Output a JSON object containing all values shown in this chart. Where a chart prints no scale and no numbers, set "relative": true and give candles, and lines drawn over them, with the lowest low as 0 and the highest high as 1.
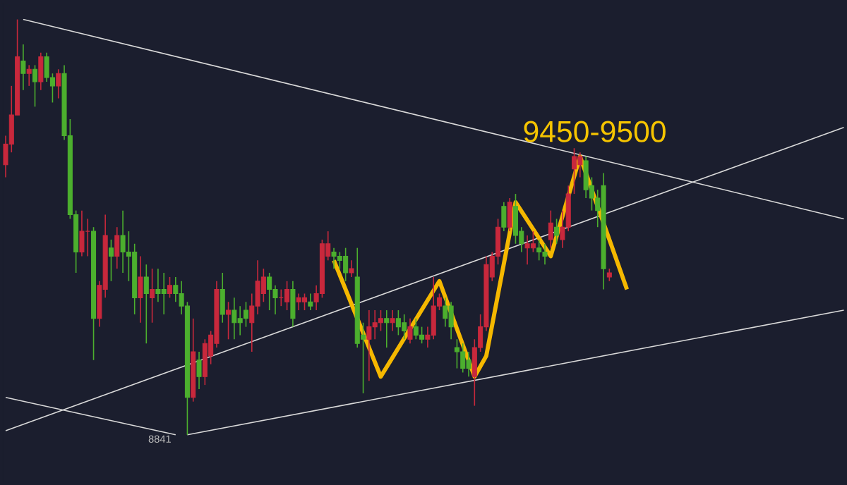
{
  "chart_data": {
    "type": "candlestick",
    "relative": true,
    "categories": [
      null,
      null,
      null,
      null,
      null,
      null,
      null,
      null,
      null,
      null,
      null,
      null,
      null,
      null,
      null,
      null,
      null,
      null,
      null,
      null,
      null,
      null,
      null,
      null,
      null,
      null,
      null,
      null,
      null,
      null,
      null,
      null,
      null,
      null,
      null,
      null,
      null,
      null,
      null,
      null,
      null,
      null,
      null,
      null,
      null,
      null,
      null,
      null,
      null,
      null,
      null,
      null,
      null,
      null,
      null,
      null,
      null,
      null,
      null,
      null,
      null,
      null,
      null,
      null,
      null,
      null,
      null,
      null,
      null,
      null,
      null,
      null,
      null,
      null,
      null,
      null,
      null,
      null,
      null,
      null,
      null,
      null,
      null,
      null,
      null,
      null,
      null,
      null,
      null,
      null,
      null,
      null,
      null,
      null,
      null,
      null,
      null,
      null,
      null,
      null,
      null,
      null,
      null,
      null,
      null,
      null,
      null,
      null,
      null,
      null,
      null,
      null,
      null,
      null,
      null,
      null,
      null,
      null,
      null,
      null,
      null,
      null,
      null,
      null,
      null,
      null,
      null,
      null,
      null,
      null,
      null,
      null,
      null,
      null,
      null,
      null,
      null,
      null,
      null,
      null,
      null,
      null,
      null,
      null
    ],
    "annotations": [
      "9450-9500",
      "8841"
    ],
    "ohlc": [
      [
        0.65,
        0.72,
        0.62,
        0.7
      ],
      [
        0.7,
        0.84,
        0.68,
        0.77
      ],
      [
        0.77,
        1.0,
        0.77,
        0.91
      ],
      [
        0.9,
        0.94,
        0.83,
        0.87
      ],
      [
        0.87,
        0.89,
        0.84,
        0.88
      ],
      [
        0.88,
        0.89,
        0.79,
        0.85
      ],
      [
        0.85,
        0.92,
        0.83,
        0.91
      ],
      [
        0.91,
        0.92,
        0.85,
        0.86
      ],
      [
        0.86,
        0.87,
        0.8,
        0.84
      ],
      [
        0.84,
        0.88,
        0.81,
        0.87
      ],
      [
        0.87,
        0.89,
        0.71,
        0.72
      ],
      [
        0.72,
        0.76,
        0.52,
        0.53
      ],
      [
        0.53,
        0.54,
        0.39,
        0.44
      ],
      [
        0.44,
        0.54,
        0.43,
        0.49
      ],
      [
        0.49,
        0.52,
        0.43,
        0.49
      ],
      [
        0.49,
        0.5,
        0.18,
        0.28
      ],
      [
        0.28,
        0.37,
        0.26,
        0.36
      ],
      [
        0.35,
        0.53,
        0.33,
        0.48
      ],
      [
        0.45,
        0.47,
        0.37,
        0.43
      ],
      [
        0.43,
        0.5,
        0.4,
        0.48
      ],
      [
        0.48,
        0.54,
        0.39,
        0.44
      ],
      [
        0.44,
        0.49,
        0.37,
        0.43
      ],
      [
        0.44,
        0.46,
        0.29,
        0.33
      ],
      [
        0.33,
        0.43,
        0.27,
        0.38
      ],
      [
        0.38,
        0.41,
        0.22,
        0.34
      ],
      [
        0.33,
        0.4,
        0.27,
        0.35
      ],
      [
        0.35,
        0.4,
        0.32,
        0.34
      ],
      [
        0.35,
        0.39,
        0.29,
        0.34
      ],
      [
        0.34,
        0.38,
        0.33,
        0.36
      ],
      [
        0.36,
        0.38,
        0.32,
        0.34
      ],
      [
        0.34,
        0.37,
        0.29,
        0.31
      ],
      [
        0.31,
        0.32,
        0.0,
        0.09
      ],
      [
        0.09,
        0.28,
        0.08,
        0.2
      ],
      [
        0.18,
        0.2,
        0.11,
        0.14
      ],
      [
        0.14,
        0.23,
        0.12,
        0.22
      ],
      [
        0.19,
        0.25,
        0.17,
        0.24
      ],
      [
        0.22,
        0.37,
        0.21,
        0.35
      ],
      [
        0.35,
        0.39,
        0.27,
        0.29
      ],
      [
        0.29,
        0.32,
        0.23,
        0.3
      ],
      [
        0.3,
        0.33,
        0.23,
        0.27
      ],
      [
        0.28,
        0.31,
        0.24,
        0.27
      ],
      [
        0.3,
        0.32,
        0.26,
        0.28
      ],
      [
        0.27,
        0.34,
        0.2,
        0.31
      ],
      [
        0.31,
        0.42,
        0.29,
        0.37
      ],
      [
        0.34,
        0.4,
        0.32,
        0.38
      ],
      [
        0.38,
        0.39,
        0.3,
        0.35
      ],
      [
        0.35,
        0.36,
        0.29,
        0.33
      ],
      [
        0.33,
        0.35,
        0.31,
        0.33
      ],
      [
        0.32,
        0.37,
        0.3,
        0.35
      ],
      [
        0.35,
        0.37,
        0.26,
        0.28
      ],
      [
        0.32,
        0.34,
        0.3,
        0.33
      ],
      [
        0.32,
        0.34,
        0.3,
        0.33
      ],
      [
        0.32,
        0.34,
        0.3,
        0.31
      ],
      [
        0.32,
        0.36,
        0.3,
        0.34
      ],
      [
        0.34,
        0.47,
        0.33,
        0.46
      ],
      [
        0.43,
        0.49,
        0.42,
        0.46
      ],
      [
        0.44,
        0.45,
        0.4,
        0.43
      ],
      [
        0.43,
        0.44,
        0.4,
        0.42
      ],
      [
        0.43,
        0.45,
        0.37,
        0.39
      ],
      [
        0.39,
        0.42,
        0.38,
        0.4
      ],
      [
        0.38,
        0.45,
        0.21,
        0.22
      ],
      [
        0.24,
        0.27,
        0.1,
        0.23
      ],
      [
        0.23,
        0.3,
        0.13,
        0.26
      ],
      [
        0.26,
        0.3,
        0.23,
        0.27
      ],
      [
        0.27,
        0.3,
        0.25,
        0.28
      ],
      [
        0.28,
        0.3,
        0.21,
        0.27
      ],
      [
        0.27,
        0.3,
        0.25,
        0.28
      ],
      [
        0.28,
        0.3,
        0.24,
        0.26
      ],
      [
        0.27,
        0.29,
        0.23,
        0.25
      ],
      [
        0.23,
        0.28,
        0.22,
        0.26
      ],
      [
        0.26,
        0.28,
        0.23,
        0.24
      ],
      [
        0.24,
        0.26,
        0.22,
        0.23
      ],
      [
        0.23,
        0.26,
        0.21,
        0.24
      ],
      [
        0.24,
        0.38,
        0.23,
        0.31
      ],
      [
        0.31,
        0.34,
        0.3,
        0.33
      ],
      [
        0.31,
        0.33,
        0.26,
        0.28
      ],
      [
        0.31,
        0.32,
        0.23,
        0.26
      ],
      [
        0.21,
        0.23,
        0.16,
        0.2
      ],
      [
        0.2,
        0.22,
        0.15,
        0.16
      ],
      [
        0.18,
        0.2,
        0.14,
        0.16
      ],
      [
        0.14,
        0.23,
        0.07,
        0.21
      ],
      [
        0.21,
        0.29,
        0.2,
        0.26
      ],
      [
        0.26,
        0.43,
        0.25,
        0.41
      ],
      [
        0.38,
        0.44,
        0.37,
        0.43
      ],
      [
        0.43,
        0.52,
        0.41,
        0.5
      ],
      [
        0.55,
        0.56,
        0.49,
        0.5
      ],
      [
        0.5,
        0.57,
        0.49,
        0.56
      ],
      [
        0.55,
        0.58,
        0.46,
        0.48
      ],
      [
        0.49,
        0.5,
        0.44,
        0.46
      ],
      [
        0.45,
        0.48,
        0.41,
        0.46
      ],
      [
        0.45,
        0.49,
        0.44,
        0.46
      ],
      [
        0.45,
        0.47,
        0.42,
        0.44
      ],
      [
        0.44,
        0.46,
        0.41,
        0.43
      ],
      [
        0.47,
        0.54,
        0.45,
        0.51
      ],
      [
        0.5,
        0.52,
        0.46,
        0.48
      ],
      [
        0.47,
        0.54,
        0.45,
        0.5
      ],
      [
        0.5,
        0.6,
        0.49,
        0.58
      ],
      [
        0.64,
        0.69,
        0.58,
        0.67
      ],
      [
        0.65,
        0.68,
        0.62,
        0.67
      ],
      [
        0.66,
        0.67,
        0.57,
        0.59
      ],
      [
        0.6,
        0.62,
        0.54,
        0.57
      ],
      [
        0.57,
        0.59,
        0.5,
        0.54
      ],
      [
        0.6,
        0.63,
        0.35,
        0.4
      ],
      [
        0.38,
        0.4,
        0.37,
        0.39
      ],
      null,
      null,
      null,
      null,
      null,
      null,
      null,
      null,
      null,
      null,
      null,
      null,
      null,
      null,
      null,
      null,
      null,
      null,
      null,
      null,
      null,
      null,
      null,
      null,
      null,
      null,
      null,
      null,
      null,
      null,
      null,
      null,
      null,
      null,
      null,
      null,
      null,
      null,
      null,
      null
    ],
    "series": [
      {
        "type": "line",
        "color": "#d9d9d9",
        "values": [
          null,
          null,
          null,
          1.0,
          null,
          null,
          null,
          null,
          null,
          null,
          null,
          null,
          null,
          null,
          null,
          null,
          null,
          null,
          null,
          null,
          null,
          null,
          null,
          null,
          null,
          null,
          null,
          null,
          null,
          null,
          null,
          null,
          null,
          null,
          null,
          null,
          null,
          null,
          null,
          null,
          null,
          null,
          null,
          null,
          null,
          null,
          null,
          null,
          null,
          null,
          null,
          null,
          null,
          null,
          null,
          null,
          null,
          null,
          null,
          null,
          null,
          null,
          null,
          null,
          null,
          null,
          null,
          null,
          null,
          null,
          null,
          null,
          null,
          null,
          null,
          null,
          null,
          null,
          null,
          null,
          null,
          null,
          null,
          null,
          null,
          null,
          null,
          null,
          null,
          null,
          null,
          null,
          null,
          null,
          null,
          null,
          null,
          null,
          null,
          null,
          null,
          null,
          null,
          null,
          null,
          null,
          null,
          null,
          null,
          null,
          null,
          null,
          null,
          null,
          null,
          null,
          null,
          null,
          null,
          null,
          null,
          null,
          null,
          null,
          null,
          null,
          null,
          null,
          null,
          null,
          null,
          null,
          null,
          null,
          null,
          null,
          null,
          null,
          null,
          null,
          null,
          null,
          null,
          0.52
        ]
      },
      {
        "type": "line",
        "color": "#d9d9d9",
        "values": [
          0.01,
          null,
          null,
          null,
          null,
          null,
          null,
          null,
          null,
          null,
          null,
          null,
          null,
          null,
          null,
          null,
          null,
          null,
          null,
          null,
          null,
          null,
          null,
          null,
          null,
          null,
          null,
          null,
          null,
          null,
          null,
          null,
          null,
          null,
          null,
          null,
          null,
          null,
          null,
          null,
          null,
          null,
          null,
          null,
          null,
          null,
          null,
          null,
          null,
          null,
          null,
          null,
          null,
          null,
          null,
          null,
          null,
          null,
          null,
          null,
          null,
          null,
          null,
          null,
          null,
          null,
          null,
          null,
          null,
          null,
          null,
          null,
          null,
          null,
          null,
          null,
          null,
          null,
          null,
          null,
          null,
          null,
          null,
          null,
          null,
          null,
          null,
          null,
          null,
          null,
          null,
          null,
          null,
          null,
          null,
          null,
          null,
          null,
          null,
          null,
          null,
          null,
          null,
          null,
          null,
          null,
          null,
          null,
          null,
          null,
          null,
          null,
          null,
          null,
          null,
          null,
          null,
          null,
          null,
          null,
          null,
          null,
          null,
          null,
          null,
          null,
          null,
          null,
          null,
          null,
          null,
          null,
          null,
          null,
          null,
          null,
          null,
          null,
          null,
          null,
          null,
          null,
          null,
          0.74
        ]
      },
      {
        "type": "line",
        "color": "#d9d9d9",
        "values": [
          null,
          null,
          null,
          null,
          null,
          null,
          null,
          null,
          null,
          null,
          null,
          null,
          null,
          null,
          null,
          null,
          null,
          null,
          null,
          null,
          null,
          null,
          null,
          null,
          null,
          null,
          null,
          null,
          null,
          null,
          null,
          0.0,
          null,
          null,
          null,
          null,
          null,
          null,
          null,
          null,
          null,
          null,
          null,
          null,
          null,
          null,
          null,
          null,
          null,
          null,
          null,
          null,
          null,
          null,
          null,
          null,
          null,
          null,
          null,
          null,
          null,
          null,
          null,
          null,
          null,
          null,
          null,
          null,
          null,
          null,
          null,
          null,
          null,
          null,
          null,
          null,
          null,
          null,
          null,
          null,
          null,
          null,
          null,
          null,
          null,
          null,
          null,
          null,
          null,
          null,
          null,
          null,
          null,
          null,
          null,
          null,
          null,
          null,
          null,
          null,
          null,
          null,
          null,
          null,
          null,
          null,
          null,
          null,
          null,
          null,
          null,
          null,
          null,
          null,
          null,
          null,
          null,
          null,
          null,
          null,
          null,
          null,
          null,
          null,
          null,
          null,
          null,
          null,
          null,
          null,
          null,
          null,
          null,
          null,
          null,
          null,
          null,
          null,
          null,
          null,
          null,
          null,
          null,
          0.3
        ]
      },
      {
        "type": "line",
        "color": "#d9d9d9",
        "values": [
          0.09,
          null,
          null,
          null,
          null,
          null,
          null,
          null,
          null,
          null,
          null,
          null,
          null,
          null,
          null,
          null,
          null,
          null,
          null,
          null,
          null,
          null,
          null,
          null,
          null,
          null,
          null,
          null,
          null,
          0.0,
          null,
          null,
          null,
          null,
          null,
          null,
          null,
          null,
          null,
          null,
          null,
          null,
          null,
          null,
          null,
          null,
          null,
          null,
          null,
          null,
          null,
          null,
          null,
          null,
          null,
          null,
          null,
          null,
          null,
          null,
          null,
          null,
          null,
          null,
          null,
          null,
          null,
          null,
          null,
          null,
          null,
          null,
          null,
          null,
          null,
          null,
          null,
          null,
          null,
          null,
          null,
          null,
          null,
          null,
          null,
          null,
          null,
          null,
          null,
          null,
          null,
          null,
          null,
          null,
          null,
          null,
          null,
          null,
          null,
          null,
          null,
          null,
          null,
          null,
          null,
          null,
          null,
          null,
          null,
          null,
          null,
          null,
          null,
          null,
          null,
          null,
          null,
          null,
          null,
          null,
          null,
          null,
          null,
          null,
          null,
          null,
          null,
          null,
          null,
          null,
          null,
          null,
          null,
          null,
          null,
          null,
          null,
          null,
          null,
          null,
          null,
          null,
          null,
          null
        ]
      },
      {
        "type": "line",
        "color": "#f5b800",
        "values": [
          null,
          null,
          null,
          null,
          null,
          null,
          null,
          null,
          null,
          null,
          null,
          null,
          null,
          null,
          null,
          null,
          null,
          null,
          null,
          null,
          null,
          null,
          null,
          null,
          null,
          null,
          null,
          null,
          null,
          null,
          null,
          null,
          null,
          null,
          null,
          null,
          null,
          null,
          null,
          null,
          null,
          null,
          null,
          null,
          null,
          null,
          null,
          null,
          null,
          null,
          null,
          null,
          null,
          null,
          null,
          null,
          0.42,
          null,
          null,
          null,
          null,
          null,
          null,
          null,
          0.14,
          null,
          null,
          null,
          null,
          null,
          null,
          null,
          null,
          null,
          0.37,
          null,
          null,
          null,
          null,
          null,
          0.14,
          null,
          0.19,
          null,
          null,
          null,
          null,
          0.56,
          null,
          null,
          null,
          null,
          null,
          0.43,
          null,
          null,
          null,
          null,
          0.67,
          null,
          null,
          null,
          null,
          null,
          null,
          null,
          0.35,
          null,
          null,
          null,
          null,
          null,
          null,
          null,
          null,
          null,
          null,
          null,
          null,
          null,
          null,
          null,
          null,
          null,
          null,
          null,
          null,
          null,
          null,
          null,
          null,
          null,
          null,
          null,
          null,
          null,
          null,
          null,
          null,
          null,
          null,
          null,
          null,
          null
        ]
      }
    ]
  }
}
